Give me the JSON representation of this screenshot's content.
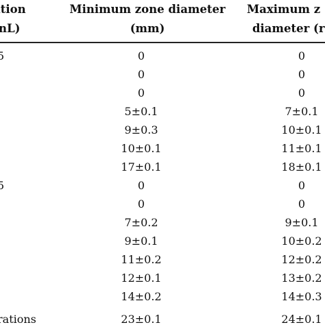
{
  "header": {
    "col1_line1": "ation",
    "col1_line2": "nL)",
    "col2_line1": "Minimum zone diameter",
    "col2_line2": "(mm)",
    "col3_line1": "Maximum z",
    "col3_line2": "diameter (r"
  },
  "rows": [
    {
      "label": "5",
      "min": "0",
      "max": "0"
    },
    {
      "label": "",
      "min": "0",
      "max": "0"
    },
    {
      "label": "",
      "min": "0",
      "max": "0"
    },
    {
      "label": "",
      "min": "5±0.1",
      "max": "7±0.1"
    },
    {
      "label": "",
      "min": "9±0.3",
      "max": "10±0.1"
    },
    {
      "label": "",
      "min": "10±0.1",
      "max": "11±0.1"
    },
    {
      "label": "",
      "min": "17±0.1",
      "max": "18±0.1"
    },
    {
      "label": "5",
      "min": "0",
      "max": "0"
    },
    {
      "label": "",
      "min": "0",
      "max": "0"
    },
    {
      "label": "",
      "min": "7±0.2",
      "max": "9±0.1"
    },
    {
      "label": "",
      "min": "9±0.1",
      "max": "10±0.2"
    },
    {
      "label": "",
      "min": "11±0.2",
      "max": "12±0.2"
    },
    {
      "label": "",
      "min": "12±0.1",
      "max": "13±0.2"
    },
    {
      "label": "",
      "min": "14±0.2",
      "max": "14±0.3"
    },
    {
      "label": "rations",
      "min": "23±0.1",
      "max": "24±0.1"
    }
  ]
}
